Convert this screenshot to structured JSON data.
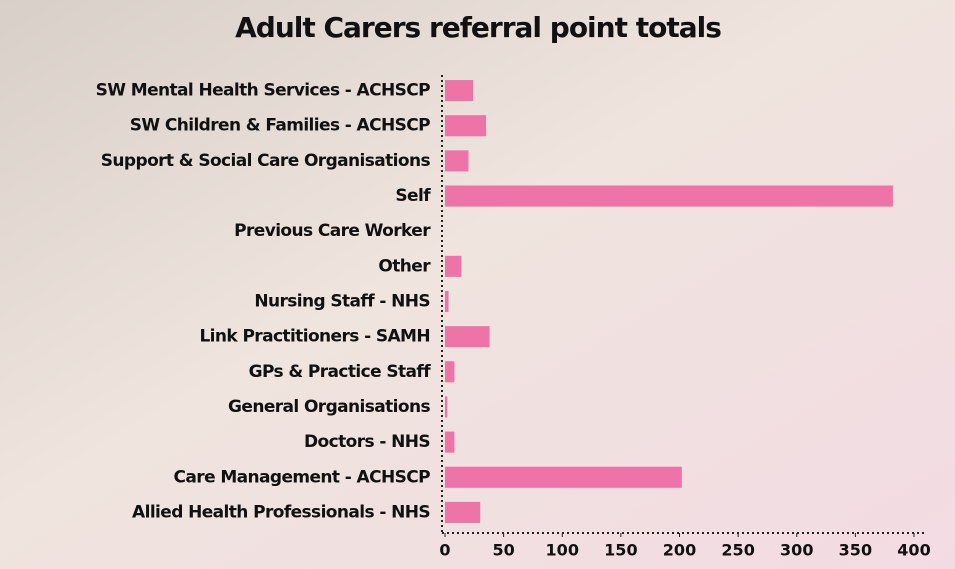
{
  "chart_data": {
    "type": "hbar",
    "title": "Adult Carers referral point totals",
    "categories": [
      "SW Mental Health Services - ACHSCP",
      "SW Children & Families - ACHSCP",
      "Support & Social Care Organisations",
      "Self",
      "Previous Care Worker",
      "Other",
      "Nursing Staff - NHS",
      "Link Practitioners - SAMH",
      "GPs & Practice Staff",
      "General Organisations",
      "Doctors - NHS",
      "Care Management - ACHSCP",
      "Allied Health Professionals - NHS"
    ],
    "values": [
      24,
      35,
      20,
      382,
      0,
      14,
      3,
      38,
      8,
      2,
      8,
      202,
      30
    ],
    "color": "#ee74a8",
    "xlim": [
      0,
      400
    ],
    "xticks": [
      0,
      50,
      100,
      150,
      200,
      250,
      300,
      350,
      400
    ],
    "grid": false
  }
}
